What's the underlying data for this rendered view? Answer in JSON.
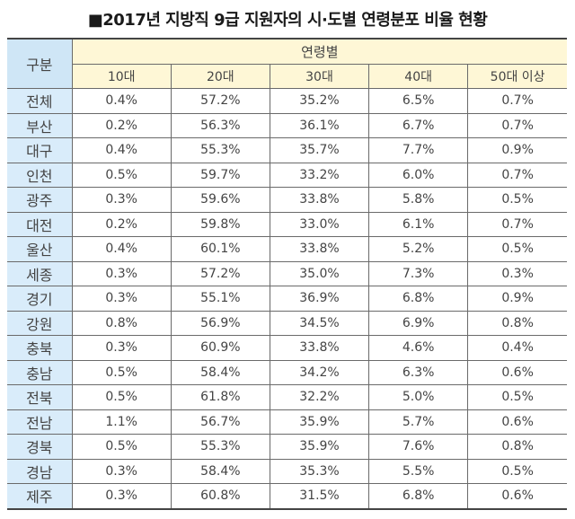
{
  "title": "■2017년 지방직 9급 지원자의 시·도별 연령분포 비율 현황",
  "table": {
    "region_header": "구분",
    "group_header": "연령별",
    "columns": [
      "10대",
      "20대",
      "30대",
      "40대",
      "50대 이상"
    ],
    "rows": [
      {
        "region": "전체",
        "values": [
          "0.4%",
          "57.2%",
          "35.2%",
          "6.5%",
          "0.7%"
        ]
      },
      {
        "region": "부산",
        "values": [
          "0.2%",
          "56.3%",
          "36.1%",
          "6.7%",
          "0.7%"
        ]
      },
      {
        "region": "대구",
        "values": [
          "0.4%",
          "55.3%",
          "35.7%",
          "7.7%",
          "0.9%"
        ]
      },
      {
        "region": "인천",
        "values": [
          "0.5%",
          "59.7%",
          "33.2%",
          "6.0%",
          "0.7%"
        ]
      },
      {
        "region": "광주",
        "values": [
          "0.3%",
          "59.6%",
          "33.8%",
          "5.8%",
          "0.5%"
        ]
      },
      {
        "region": "대전",
        "values": [
          "0.2%",
          "59.8%",
          "33.0%",
          "6.1%",
          "0.7%"
        ]
      },
      {
        "region": "울산",
        "values": [
          "0.4%",
          "60.1%",
          "33.8%",
          "5.2%",
          "0.5%"
        ]
      },
      {
        "region": "세종",
        "values": [
          "0.3%",
          "57.2%",
          "35.0%",
          "7.3%",
          "0.3%"
        ]
      },
      {
        "region": "경기",
        "values": [
          "0.3%",
          "55.1%",
          "36.9%",
          "6.8%",
          "0.9%"
        ]
      },
      {
        "region": "강원",
        "values": [
          "0.8%",
          "56.9%",
          "34.5%",
          "6.9%",
          "0.8%"
        ]
      },
      {
        "region": "충북",
        "values": [
          "0.3%",
          "60.9%",
          "33.8%",
          "4.6%",
          "0.4%"
        ]
      },
      {
        "region": "충남",
        "values": [
          "0.5%",
          "58.4%",
          "34.2%",
          "6.3%",
          "0.6%"
        ]
      },
      {
        "region": "전북",
        "values": [
          "0.5%",
          "61.8%",
          "32.2%",
          "5.0%",
          "0.5%"
        ]
      },
      {
        "region": "전남",
        "values": [
          "1.1%",
          "56.7%",
          "35.9%",
          "5.7%",
          "0.6%"
        ]
      },
      {
        "region": "경북",
        "values": [
          "0.5%",
          "55.3%",
          "35.9%",
          "7.6%",
          "0.8%"
        ]
      },
      {
        "region": "경남",
        "values": [
          "0.3%",
          "58.4%",
          "35.3%",
          "5.5%",
          "0.5%"
        ]
      },
      {
        "region": "제주",
        "values": [
          "0.3%",
          "60.8%",
          "31.5%",
          "6.8%",
          "0.6%"
        ]
      }
    ]
  },
  "colors": {
    "region_header_bg": "#cfe6f6",
    "region_cell_bg": "#d9ecfa",
    "age_header_bg": "#fef7d6",
    "border": "#6a6a6a"
  }
}
